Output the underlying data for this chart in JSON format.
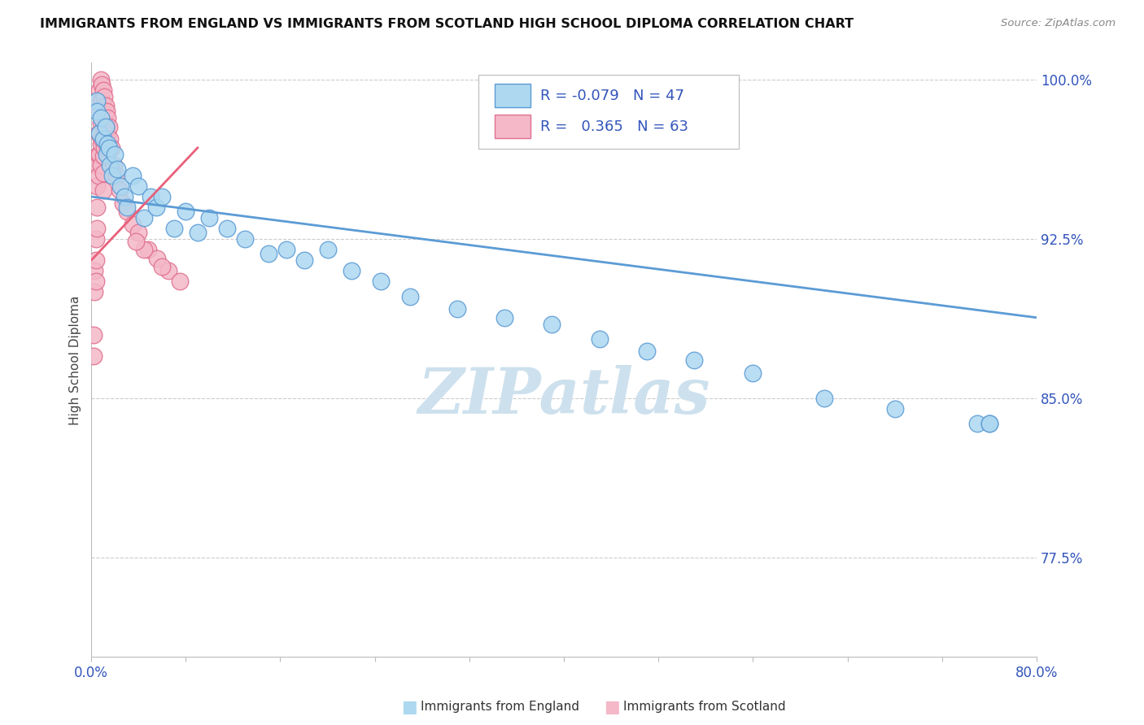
{
  "title": "IMMIGRANTS FROM ENGLAND VS IMMIGRANTS FROM SCOTLAND HIGH SCHOOL DIPLOMA CORRELATION CHART",
  "source": "Source: ZipAtlas.com",
  "ylabel": "High School Diploma",
  "legend_label1": "Immigrants from England",
  "legend_label2": "Immigrants from Scotland",
  "R1": -0.079,
  "N1": 47,
  "R2": 0.365,
  "N2": 63,
  "xmin": 0.0,
  "xmax": 0.8,
  "ymin": 0.728,
  "ymax": 1.008,
  "yticks": [
    0.775,
    0.85,
    0.925,
    1.0
  ],
  "ytick_labels": [
    "77.5%",
    "85.0%",
    "92.5%",
    "100.0%"
  ],
  "xticks": [
    0.0,
    0.08,
    0.16,
    0.24,
    0.32,
    0.4,
    0.48,
    0.56,
    0.64,
    0.72,
    0.8
  ],
  "xtick_labels": [
    "0.0%",
    "",
    "",
    "",
    "",
    "",
    "",
    "",
    "",
    "",
    "80.0%"
  ],
  "color_england": "#add8f0",
  "color_scotland": "#f4b8c8",
  "edge_england": "#5b9bd5",
  "edge_scotland": "#e07090",
  "trendline_color_england": "#5b9bd5",
  "trendline_color_scotland": "#e8607a",
  "watermark": "ZIPatlas",
  "watermark_color": "#cde0ed",
  "england_x": [
    0.005,
    0.005,
    0.007,
    0.008,
    0.01,
    0.012,
    0.013,
    0.014,
    0.015,
    0.016,
    0.018,
    0.02,
    0.022,
    0.025,
    0.028,
    0.03,
    0.035,
    0.04,
    0.045,
    0.05,
    0.055,
    0.06,
    0.07,
    0.08,
    0.09,
    0.1,
    0.115,
    0.13,
    0.15,
    0.165,
    0.18,
    0.2,
    0.22,
    0.245,
    0.27,
    0.31,
    0.35,
    0.39,
    0.43,
    0.47,
    0.51,
    0.56,
    0.62,
    0.68,
    0.75,
    0.76,
    0.76
  ],
  "england_y": [
    0.99,
    0.985,
    0.975,
    0.982,
    0.972,
    0.978,
    0.965,
    0.97,
    0.968,
    0.96,
    0.955,
    0.965,
    0.958,
    0.95,
    0.945,
    0.94,
    0.955,
    0.95,
    0.935,
    0.945,
    0.94,
    0.945,
    0.93,
    0.938,
    0.928,
    0.935,
    0.93,
    0.925,
    0.918,
    0.92,
    0.915,
    0.92,
    0.91,
    0.905,
    0.898,
    0.892,
    0.888,
    0.885,
    0.878,
    0.872,
    0.868,
    0.862,
    0.85,
    0.845,
    0.838,
    0.838,
    0.838
  ],
  "scotland_x": [
    0.002,
    0.002,
    0.003,
    0.003,
    0.004,
    0.004,
    0.004,
    0.005,
    0.005,
    0.005,
    0.005,
    0.006,
    0.006,
    0.006,
    0.007,
    0.007,
    0.007,
    0.007,
    0.008,
    0.008,
    0.008,
    0.008,
    0.008,
    0.009,
    0.009,
    0.009,
    0.009,
    0.01,
    0.01,
    0.01,
    0.01,
    0.01,
    0.01,
    0.01,
    0.011,
    0.011,
    0.011,
    0.011,
    0.012,
    0.012,
    0.012,
    0.013,
    0.013,
    0.013,
    0.014,
    0.014,
    0.015,
    0.016,
    0.017,
    0.019,
    0.021,
    0.024,
    0.027,
    0.03,
    0.035,
    0.04,
    0.048,
    0.056,
    0.065,
    0.075,
    0.06,
    0.045,
    0.038
  ],
  "scotland_y": [
    0.88,
    0.87,
    0.91,
    0.9,
    0.925,
    0.915,
    0.905,
    0.96,
    0.95,
    0.94,
    0.93,
    0.975,
    0.965,
    0.955,
    0.995,
    0.985,
    0.975,
    0.965,
    1.0,
    0.99,
    0.98,
    0.97,
    0.96,
    0.998,
    0.99,
    0.982,
    0.972,
    0.995,
    0.988,
    0.98,
    0.972,
    0.964,
    0.956,
    0.948,
    0.992,
    0.984,
    0.976,
    0.968,
    0.988,
    0.98,
    0.972,
    0.985,
    0.978,
    0.97,
    0.982,
    0.975,
    0.978,
    0.972,
    0.968,
    0.96,
    0.955,
    0.948,
    0.942,
    0.938,
    0.932,
    0.928,
    0.92,
    0.916,
    0.91,
    0.905,
    0.912,
    0.92,
    0.924
  ],
  "trend_eng_x0": 0.0,
  "trend_eng_x1": 0.8,
  "trend_eng_y0": 0.945,
  "trend_eng_y1": 0.888,
  "trend_sco_x0": 0.0,
  "trend_sco_x1": 0.09,
  "trend_sco_y0": 0.915,
  "trend_sco_y1": 0.968
}
